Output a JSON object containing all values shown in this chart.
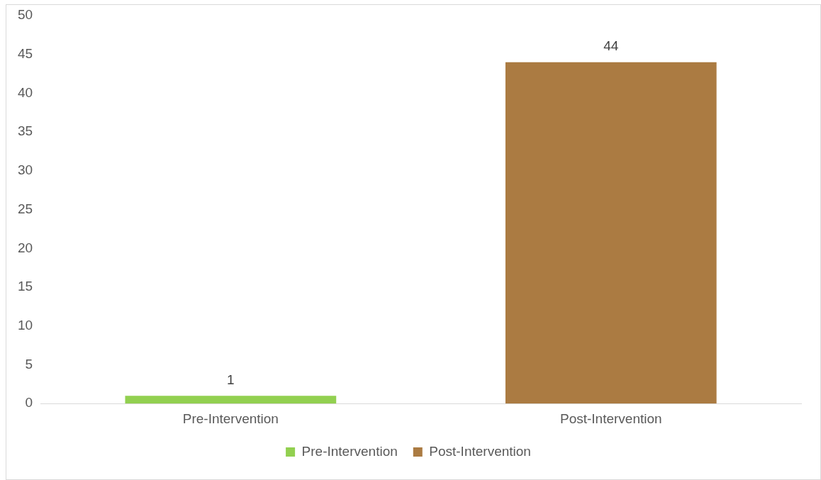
{
  "chart_data": {
    "type": "bar",
    "categories": [
      "Pre-Intervention",
      "Post-Intervention"
    ],
    "series": [
      {
        "name": "Pre-Intervention",
        "color": "#92d050",
        "values": [
          1,
          null
        ]
      },
      {
        "name": "Post-Intervention",
        "color": "#ab7b42",
        "values": [
          null,
          44
        ]
      }
    ],
    "ylim": [
      0,
      50
    ],
    "yticks": [
      0,
      5,
      10,
      15,
      20,
      25,
      30,
      35,
      40,
      45,
      50
    ],
    "grid": false,
    "legend": "bottom",
    "data_labels": true
  }
}
